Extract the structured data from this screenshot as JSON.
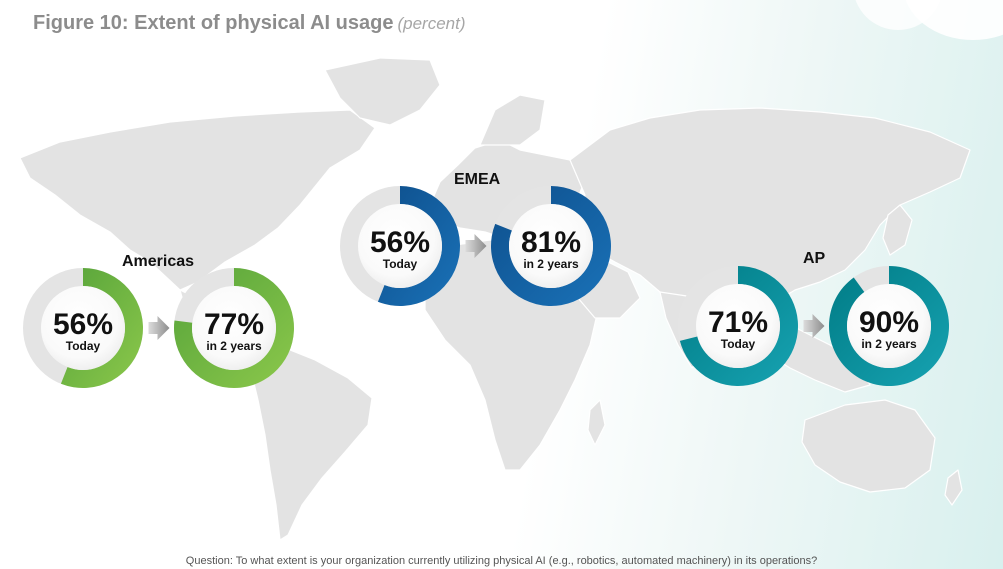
{
  "title": "Figure 10: Extent of physical AI usage",
  "title_unit": "(percent)",
  "footnote": "Question: To what extent is your organization currently utilizing physical AI (e.g., robotics, automated machinery) in its operations?",
  "colors": {
    "Americas": {
      "dark": "#56a33a",
      "light": "#8cc84b"
    },
    "EMEA": {
      "dark": "#0e4f8c",
      "light": "#1a72b8"
    },
    "AP": {
      "dark": "#007b85",
      "light": "#17a3b2"
    },
    "gray_ring": "#e4e4e4",
    "arrow": "#8c8c8c",
    "map": "#e3e3e3"
  },
  "chart_data": {
    "type": "pie",
    "title": "Figure 10: Extent of physical AI usage",
    "unit": "percent",
    "categories": [
      "Today",
      "in 2 years"
    ],
    "series": [
      {
        "name": "Americas",
        "values": [
          56,
          77
        ]
      },
      {
        "name": "EMEA",
        "values": [
          56,
          81
        ]
      },
      {
        "name": "AP",
        "values": [
          71,
          90
        ]
      }
    ]
  }
}
